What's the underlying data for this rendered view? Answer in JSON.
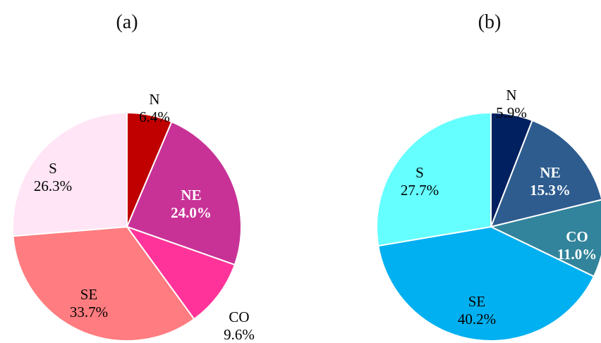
{
  "chart_data": [
    {
      "type": "pie",
      "panel_label": "(a)",
      "slices": [
        {
          "label": "N",
          "value_text": "6.4%",
          "value": 6.4,
          "color": "#c00000",
          "text_color": "#000000",
          "bold": false
        },
        {
          "label": "NE",
          "value_text": "24.0%",
          "value": 24.0,
          "color": "#c83296",
          "text_color": "#ffffff",
          "bold": true
        },
        {
          "label": "CO",
          "value_text": "9.6%",
          "value": 9.6,
          "color": "#ff3399",
          "text_color": "#000000",
          "bold": false
        },
        {
          "label": "SE",
          "value_text": "33.7%",
          "value": 33.7,
          "color": "#ff7c80",
          "text_color": "#000000",
          "bold": false
        },
        {
          "label": "S",
          "value_text": "26.3%",
          "value": 26.3,
          "color": "#ffe5f5",
          "text_color": "#000000",
          "bold": false
        }
      ]
    },
    {
      "type": "pie",
      "panel_label": "(b)",
      "slices": [
        {
          "label": "N",
          "value_text": "5.9%",
          "value": 5.9,
          "color": "#002060",
          "text_color": "#000000",
          "bold": false
        },
        {
          "label": "NE",
          "value_text": "15.3%",
          "value": 15.3,
          "color": "#2e5c8f",
          "text_color": "#ffffff",
          "bold": true
        },
        {
          "label": "CO",
          "value_text": "11.0%",
          "value": 11.0,
          "color": "#31849b",
          "text_color": "#ffffff",
          "bold": true
        },
        {
          "label": "SE",
          "value_text": "40.2%",
          "value": 40.2,
          "color": "#00b0f0",
          "text_color": "#000000",
          "bold": false
        },
        {
          "label": "S",
          "value_text": "27.7%",
          "value": 27.7,
          "color": "#66ffff",
          "text_color": "#000000",
          "bold": false
        }
      ]
    }
  ]
}
